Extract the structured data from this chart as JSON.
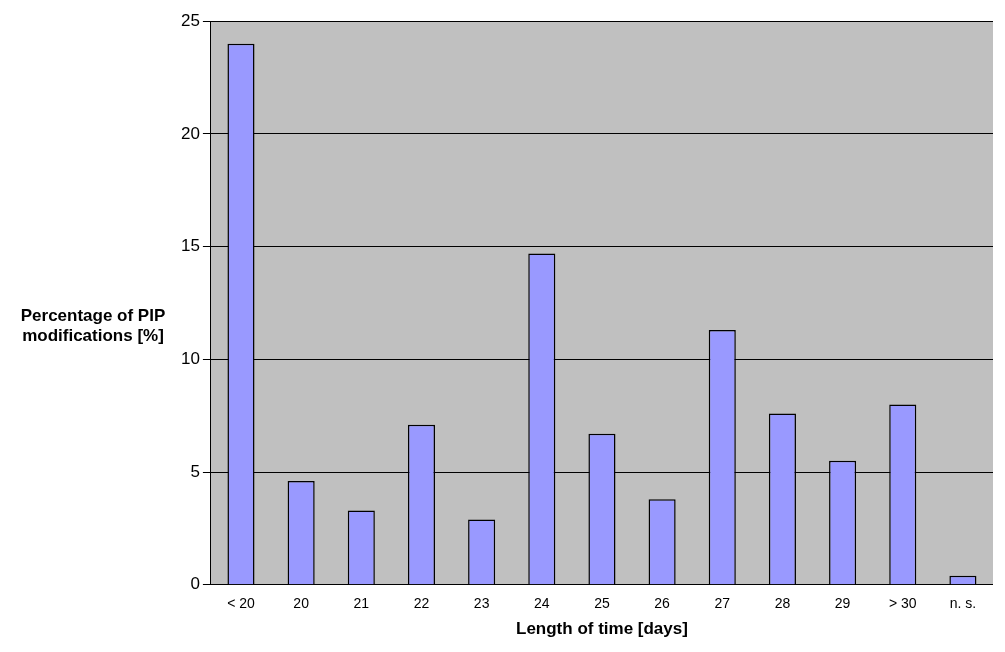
{
  "chart_data": {
    "type": "bar",
    "xlabel": "Length of time [days]",
    "ylabel": "Percentage of PIP modifications [%]",
    "categories": [
      "< 20",
      "20",
      "21",
      "22",
      "23",
      "24",
      "25",
      "26",
      "27",
      "28",
      "29",
      "> 30",
      "n. s."
    ],
    "values": [
      24,
      4.6,
      3.3,
      7.1,
      2.9,
      14.7,
      6.7,
      3.8,
      11.3,
      7.6,
      5.5,
      8,
      0.4
    ],
    "color": "#9999ff",
    "ylim": [
      0,
      25
    ],
    "yticks": [
      0,
      5,
      10,
      15,
      20,
      25
    ],
    "grid": "y",
    "legend": false
  }
}
